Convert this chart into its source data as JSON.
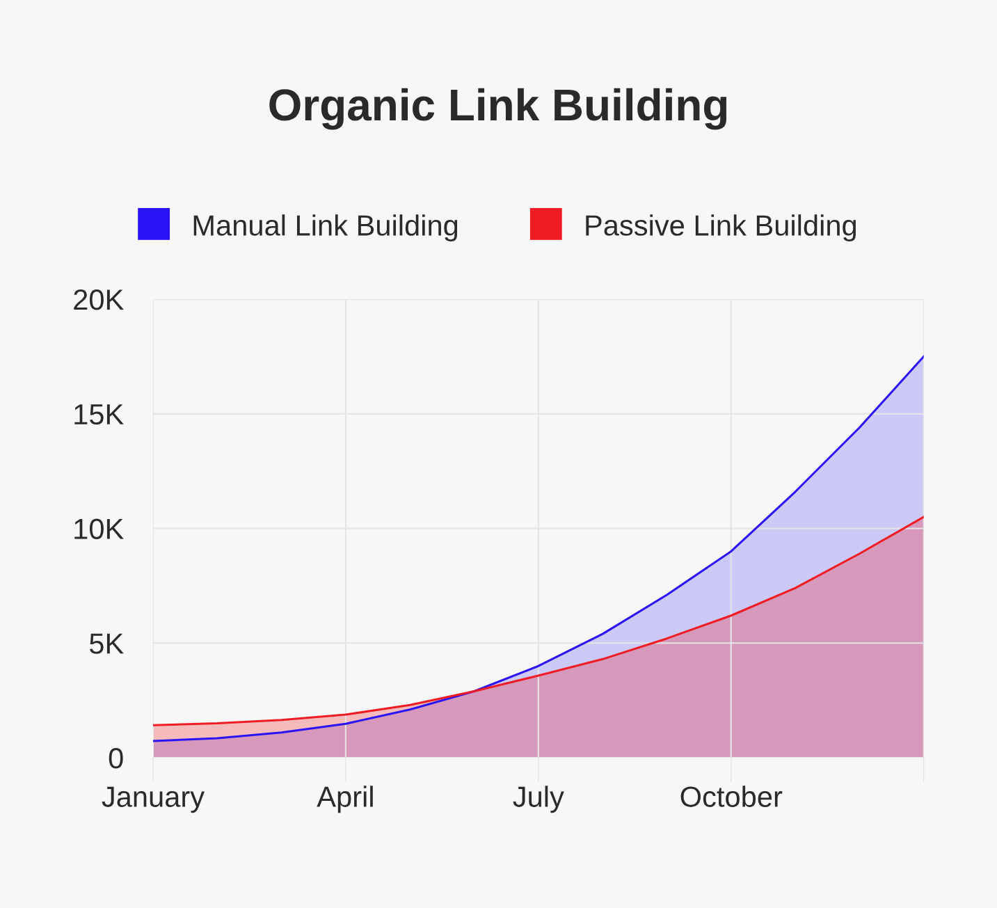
{
  "chart_data": {
    "type": "area",
    "title": "Organic Link Building",
    "categories": [
      "January",
      null,
      null,
      "April",
      null,
      null,
      "July",
      null,
      null,
      "October",
      null,
      null,
      null
    ],
    "ylim": [
      0,
      20000
    ],
    "yticks": [
      {
        "value": 0,
        "label": "0"
      },
      {
        "value": 5000,
        "label": "5K"
      },
      {
        "value": 10000,
        "label": "10K"
      },
      {
        "value": 15000,
        "label": "15K"
      },
      {
        "value": 20000,
        "label": "20K"
      }
    ],
    "series": [
      {
        "name": "Manual Link Building",
        "color": "#2a14f5",
        "values": [
          730,
          850,
          1100,
          1480,
          2100,
          2900,
          4000,
          5400,
          7100,
          9000,
          11600,
          14400,
          17500
        ]
      },
      {
        "name": "Passive Link Building",
        "color": "#f01c24",
        "values": [
          1420,
          1500,
          1650,
          1880,
          2300,
          2900,
          3580,
          4300,
          5200,
          6200,
          7400,
          8900,
          10500
        ]
      }
    ],
    "grid": true,
    "legend": "top"
  }
}
